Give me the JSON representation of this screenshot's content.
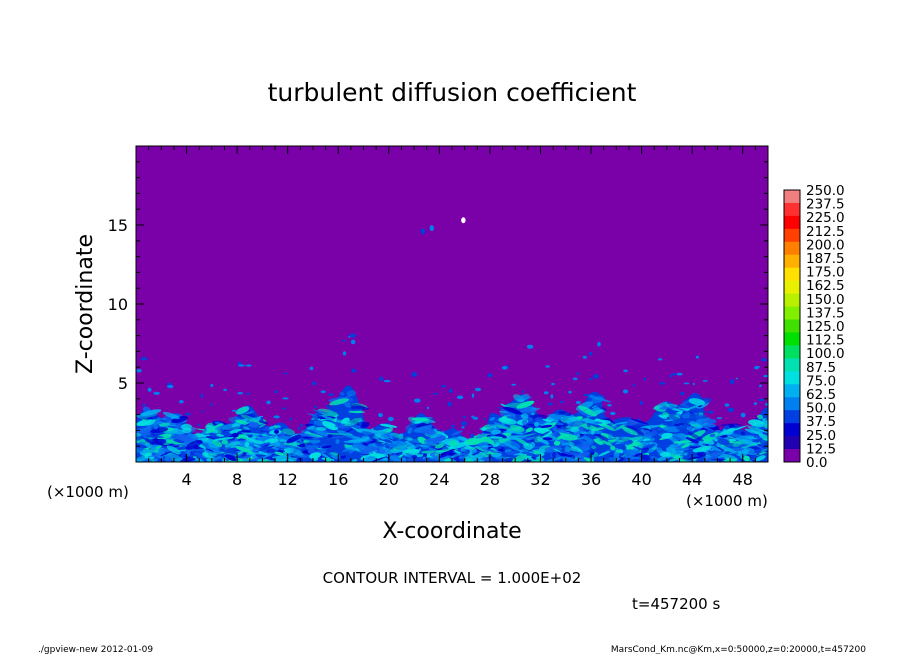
{
  "chart_data": {
    "type": "heatmap",
    "title": "turbulent diffusion coefficient",
    "xlabel": "X-coordinate",
    "ylabel": "Z-coordinate",
    "x_unit": "(×1000 m)",
    "y_unit": "(×1000 m)",
    "xlim": [
      0,
      50
    ],
    "ylim": [
      0,
      20
    ],
    "x_ticks": [
      4,
      8,
      12,
      16,
      20,
      24,
      28,
      32,
      36,
      40,
      44,
      48
    ],
    "y_ticks": [
      5,
      10,
      15
    ],
    "colorbar": {
      "levels": [
        "250.0",
        "237.5",
        "225.0",
        "212.5",
        "200.0",
        "187.5",
        "175.0",
        "162.5",
        "150.0",
        "137.5",
        "125.0",
        "112.5",
        "100.0",
        "87.5",
        "75.0",
        "62.5",
        "50.0",
        "37.5",
        "25.0",
        "12.5",
        "0.0"
      ],
      "colors": [
        "#f08080",
        "#ff3030",
        "#ff0000",
        "#ff4000",
        "#ff8000",
        "#ffb000",
        "#ffe000",
        "#e8f000",
        "#b8f000",
        "#80f000",
        "#40e000",
        "#00e000",
        "#00e060",
        "#00e0b0",
        "#00e0e0",
        "#00b0f0",
        "#0080f0",
        "#0040e0",
        "#0000d0",
        "#2000b0",
        "#7a00a8"
      ],
      "background": "#7a00a8"
    },
    "contour_interval": "CONTOUR INTERVAL = 1.000E+02",
    "time_label": "t=457200 s",
    "footer_left": "./gpview-new  2012-01-09",
    "footer_right": "MarsCond_Km.nc@Km,x=0:50000,z=0:20000,t=457200"
  }
}
